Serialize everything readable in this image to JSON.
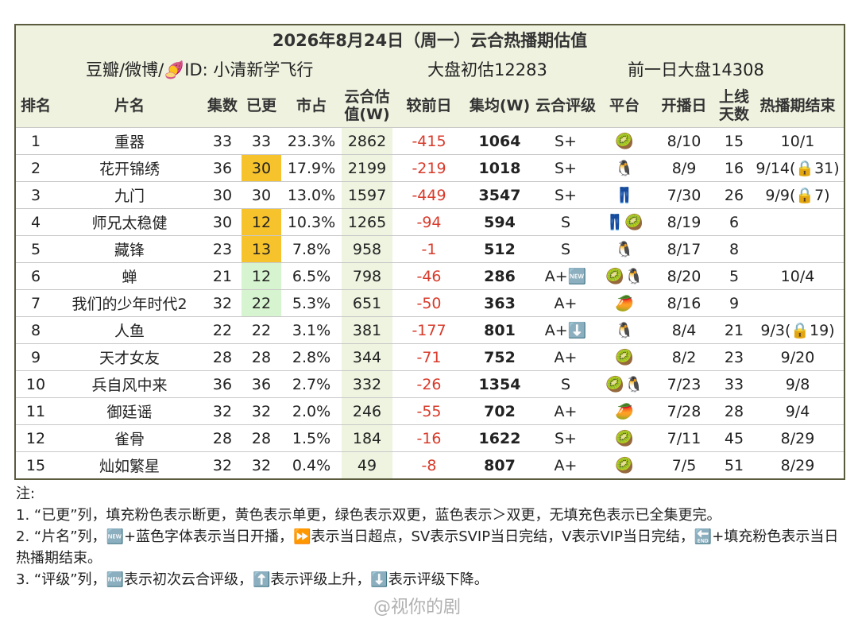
{
  "header": {
    "title": "2026年8月24日（周一）云合热播期估值",
    "source": "豆瓣/微博/🍠ID: 小清新学飞行",
    "estimate": "大盘初估12283",
    "previous": "前一日大盘14308"
  },
  "table": {
    "columns": [
      "排名",
      "片名",
      "集数",
      "已更",
      "市占",
      "云合估值(W)",
      "较前日",
      "集均(W)",
      "云合评级",
      "平台",
      "开播日",
      "上线天数",
      "热播期结束"
    ],
    "rows": [
      [
        "1",
        "重器",
        "33",
        "33",
        "23.3%",
        "2862",
        "-415",
        "1064",
        "S+",
        "🥝",
        "8/10",
        "15",
        "10/1"
      ],
      [
        "2",
        "花开锦绣",
        "36",
        "30",
        "17.9%",
        "2199",
        "-219",
        "1018",
        "S+",
        "🐧",
        "8/9",
        "16",
        "9/14(🔒31)"
      ],
      [
        "3",
        "九门",
        "30",
        "30",
        "13.0%",
        "1597",
        "-449",
        "3547",
        "S+",
        "👖",
        "7/30",
        "26",
        "9/9(🔒7)"
      ],
      [
        "4",
        "师兄太稳健",
        "30",
        "12",
        "10.3%",
        "1265",
        "-94",
        "594",
        "S",
        "👖🥝",
        "8/19",
        "6",
        null
      ],
      [
        "5",
        "藏锋",
        "23",
        "13",
        "7.8%",
        "958",
        "-1",
        "512",
        "S",
        "🐧",
        "8/17",
        "8",
        null
      ],
      [
        "6",
        "蝉",
        "21",
        "12",
        "6.5%",
        "798",
        "-46",
        "286",
        "A+🆕",
        "🥝🐧",
        "8/20",
        "5",
        "10/4"
      ],
      [
        "7",
        "我们的少年时代2",
        "32",
        "22",
        "5.3%",
        "651",
        "-50",
        "363",
        "A+",
        "🥭",
        "8/16",
        "9",
        null
      ],
      [
        "8",
        "人鱼",
        "22",
        "22",
        "3.1%",
        "381",
        "-177",
        "801",
        "A+⬇️",
        "🐧",
        "8/4",
        "21",
        "9/3(🔒19)"
      ],
      [
        "9",
        "天才女友",
        "28",
        "28",
        "2.8%",
        "344",
        "-71",
        "752",
        "A+",
        "🥝",
        "8/2",
        "23",
        "9/20"
      ],
      [
        "10",
        "兵自风中来",
        "36",
        "36",
        "2.7%",
        "332",
        "-26",
        "1354",
        "S",
        "🥝🐧",
        "7/23",
        "33",
        "9/8"
      ],
      [
        "11",
        "御廷谣",
        "32",
        "32",
        "2.0%",
        "246",
        "-55",
        "702",
        "A+",
        "🥭",
        "7/28",
        "28",
        "9/4"
      ],
      [
        "12",
        "雀骨",
        "28",
        "28",
        "1.5%",
        "184",
        "-16",
        "1622",
        "S+",
        "🥝",
        "7/11",
        "45",
        "8/29"
      ],
      [
        "15",
        "灿如繁星",
        "32",
        "32",
        "0.4%",
        "49",
        "-8",
        "807",
        "A+",
        "🥝",
        "7/5",
        "51",
        "8/29"
      ]
    ]
  },
  "notes": {
    "title": "注:",
    "items": [
      "1. “已更”列，填充粉色表示断更，黄色表示单更，绿色表示双更，蓝色表示＞双更，无填充色表示已全集更完。",
      "2. “片名”列，🆕+蓝色字体表示当日开播，⏩表示当日超点，SV表示SVIP当日完结，V表示VIP当日完结，🔚+填充粉色表示当日热播期结束。",
      "3. “评级”列，🆕表示初次云合评级，⬆️表示评级上升，⬇️表示评级下降。"
    ]
  },
  "watermark": "@视你的剧"
}
